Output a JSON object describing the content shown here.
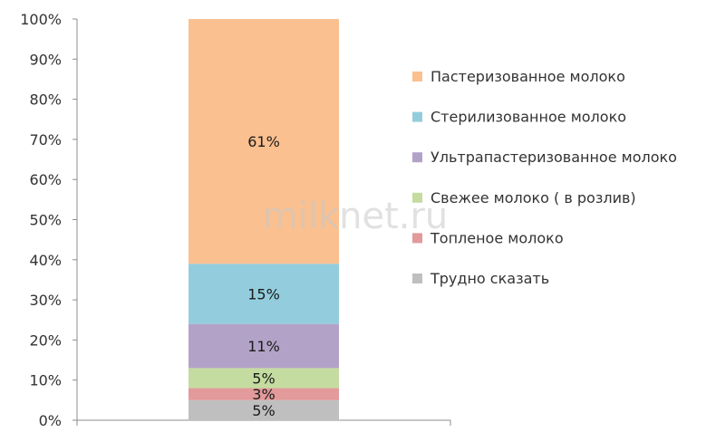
{
  "chart_data": {
    "type": "bar",
    "stacked": true,
    "orientation": "vertical",
    "categories": [
      ""
    ],
    "series": [
      {
        "name": "Трудно сказать",
        "values": [
          5
        ],
        "label": "5%",
        "color": "#bfbfbf"
      },
      {
        "name": "Топленое молоко",
        "values": [
          3
        ],
        "label": "3%",
        "color": "#e29a9a"
      },
      {
        "name": "Свежее молоко ( в розлив)",
        "values": [
          5
        ],
        "label": "5%",
        "color": "#c5dca0"
      },
      {
        "name": "Ультрапастеризованное молоко",
        "values": [
          11
        ],
        "label": "11%",
        "color": "#b3a2c7"
      },
      {
        "name": "Стерилизованное молоко",
        "values": [
          15
        ],
        "label": "15%",
        "color": "#93cddd"
      },
      {
        "name": "Пастеризованное молоко",
        "values": [
          61
        ],
        "label": "61%",
        "color": "#fac08f"
      }
    ],
    "legend_order": [
      "Пастеризованное молоко",
      "Стерилизованное молоко",
      "Ультрапастеризованное молоко",
      "Свежее молоко ( в розлив)",
      "Топленое молоко",
      "Трудно сказать"
    ],
    "y_ticks": [
      "0%",
      "10%",
      "20%",
      "30%",
      "40%",
      "50%",
      "60%",
      "70%",
      "80%",
      "90%",
      "100%"
    ],
    "ylim": [
      0,
      100
    ],
    "grid": false,
    "legend_position": "right"
  },
  "watermark": "milknet.ru"
}
